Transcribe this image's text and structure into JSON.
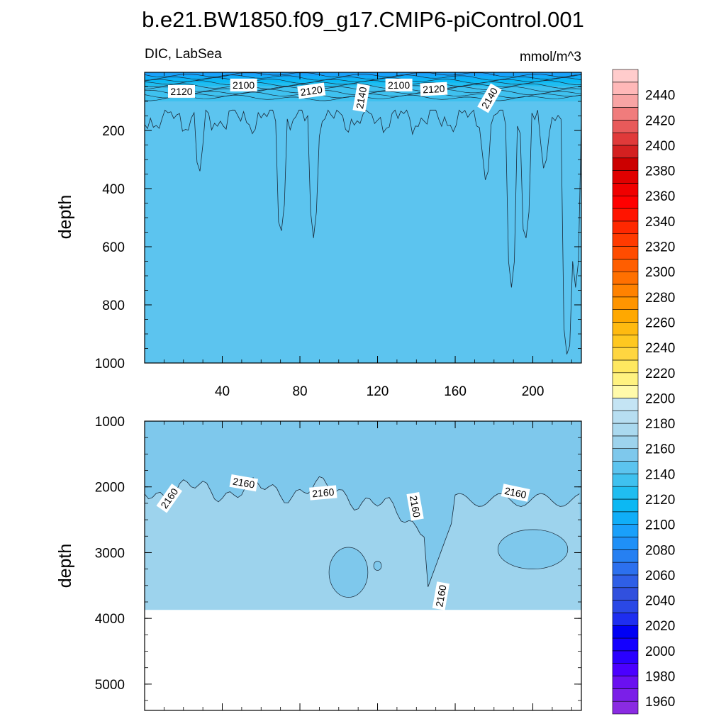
{
  "title": "b.e21.BW1850.f09_g17.CMIP6-piControl.001",
  "chart_data": {
    "type": "heatmap",
    "variable": "DIC, LabSea",
    "units": "mmol/m^3",
    "xrange": [
      0,
      225
    ],
    "x_ticks": [
      "40",
      "80",
      "120",
      "160",
      "200"
    ],
    "colorbar": {
      "levels": [
        1950,
        1960,
        1970,
        1980,
        1990,
        2000,
        2010,
        2020,
        2030,
        2040,
        2050,
        2060,
        2070,
        2080,
        2090,
        2100,
        2110,
        2120,
        2130,
        2140,
        2150,
        2160,
        2170,
        2180,
        2190,
        2200,
        2210,
        2220,
        2230,
        2240,
        2250,
        2260,
        2270,
        2280,
        2290,
        2300,
        2310,
        2320,
        2330,
        2340,
        2350,
        2360,
        2370,
        2380,
        2390,
        2400,
        2410,
        2420,
        2430,
        2440,
        2450,
        2460
      ],
      "colors": [
        "#8a2be2",
        "#7b1fe8",
        "#6a10f0",
        "#4b00ff",
        "#2a00ff",
        "#1400ff",
        "#0000f4",
        "#1e2ef0",
        "#2a48e6",
        "#3150de",
        "#2f5fe6",
        "#2c70ee",
        "#2680f2",
        "#1f90f7",
        "#1aa0fa",
        "#10aef8",
        "#0cb8f3",
        "#20bdf0",
        "#3fc1ef",
        "#5cc4ef",
        "#7ec8ec",
        "#9dd3ed",
        "#aad9ef",
        "#b7def1",
        "#c4e4f4",
        "#fffaaa",
        "#fff280",
        "#ffe860",
        "#ffd640",
        "#ffc820",
        "#ffba10",
        "#ffa800",
        "#ff9500",
        "#ff8200",
        "#ff7000",
        "#ff5e00",
        "#ff4c00",
        "#ff3a00",
        "#ff2800",
        "#ff1400",
        "#ff0000",
        "#f00000",
        "#e00000",
        "#cc0000",
        "#d42020",
        "#e03a3a",
        "#e85a5a",
        "#f07c7c",
        "#f8a4a4",
        "#ffb8b8",
        "#ffcccc"
      ],
      "tick_labels": [
        "1960",
        "1980",
        "2000",
        "2020",
        "2040",
        "2060",
        "2080",
        "2100",
        "2120",
        "2140",
        "2160",
        "2180",
        "2200",
        "2220",
        "2240",
        "2260",
        "2280",
        "2300",
        "2320",
        "2340",
        "2360",
        "2380",
        "2400",
        "2420",
        "2440"
      ],
      "tick_values": [
        1960,
        1980,
        2000,
        2020,
        2040,
        2060,
        2080,
        2100,
        2120,
        2140,
        2160,
        2180,
        2200,
        2220,
        2240,
        2260,
        2280,
        2300,
        2320,
        2340,
        2360,
        2380,
        2400,
        2420,
        2440
      ]
    },
    "panels": [
      {
        "name": "upper",
        "ylabel": "depth",
        "ylim": [
          0,
          1000
        ],
        "y_ticks": [
          "200",
          "400",
          "600",
          "800",
          "1000"
        ],
        "y_tick_values": [
          200,
          400,
          600,
          800,
          1000
        ],
        "background_value": 2145,
        "undefined_below": null,
        "contour_labels": [
          {
            "text": "2120",
            "x": 19,
            "y": 68,
            "angle": 0
          },
          {
            "text": "2100",
            "x": 51,
            "y": 46,
            "angle": 0
          },
          {
            "text": "2120",
            "x": 86,
            "y": 66,
            "angle": -8
          },
          {
            "text": "2140",
            "x": 112,
            "y": 88,
            "angle": -80
          },
          {
            "text": "2100",
            "x": 131,
            "y": 46,
            "angle": 0
          },
          {
            "text": "2120",
            "x": 149,
            "y": 60,
            "angle": -3
          },
          {
            "text": "2140",
            "x": 178,
            "y": 90,
            "angle": -60
          }
        ]
      },
      {
        "name": "lower",
        "ylabel": "depth",
        "ylim": [
          1000,
          5400
        ],
        "y_ticks": [
          "1000",
          "2000",
          "3000",
          "4000",
          "5000"
        ],
        "y_tick_values": [
          1000,
          2000,
          3000,
          4000,
          5000
        ],
        "background_value": 2155,
        "undefined_below": 3870,
        "contour_labels": [
          {
            "text": "2160",
            "x": 13,
            "y": 2180,
            "angle": -55
          },
          {
            "text": "2160",
            "x": 51,
            "y": 1950,
            "angle": 10
          },
          {
            "text": "2160",
            "x": 92,
            "y": 2100,
            "angle": -5
          },
          {
            "text": "2160",
            "x": 139,
            "y": 2300,
            "angle": 80
          },
          {
            "text": "2160",
            "x": 153,
            "y": 3660,
            "angle": -80
          },
          {
            "text": "2160",
            "x": 191,
            "y": 2100,
            "angle": 12
          }
        ]
      }
    ]
  }
}
